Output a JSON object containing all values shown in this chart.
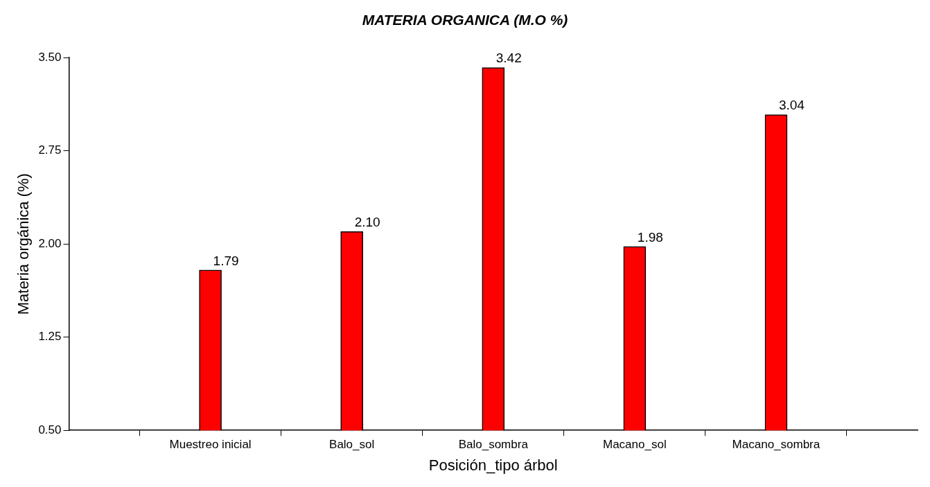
{
  "chart_data": {
    "type": "bar",
    "title": "MATERIA ORGANICA (M.O %)",
    "xlabel": "Posición_tipo árbol",
    "ylabel": "Materia orgánica (%)",
    "categories": [
      "Muestreo inicial",
      "Balo_sol",
      "Balo_sombra",
      "Macano_sol",
      "Macano_sombra"
    ],
    "values": [
      1.79,
      2.1,
      3.42,
      1.98,
      3.04
    ],
    "color": "#ff0000",
    "ylim": [
      0.5,
      3.5
    ],
    "yticks": [
      {
        "value": 0.5,
        "label": "0.50"
      },
      {
        "value": 1.25,
        "label": "1.25"
      },
      {
        "value": 2,
        "label": "2.00"
      },
      {
        "value": 2.75,
        "label": "2.75"
      },
      {
        "value": 3.5,
        "label": "3.50"
      }
    ],
    "value_labels": [
      "1.79",
      "2.10",
      "3.42",
      "1.98",
      "3.04"
    ],
    "grid": false,
    "legend": false
  }
}
